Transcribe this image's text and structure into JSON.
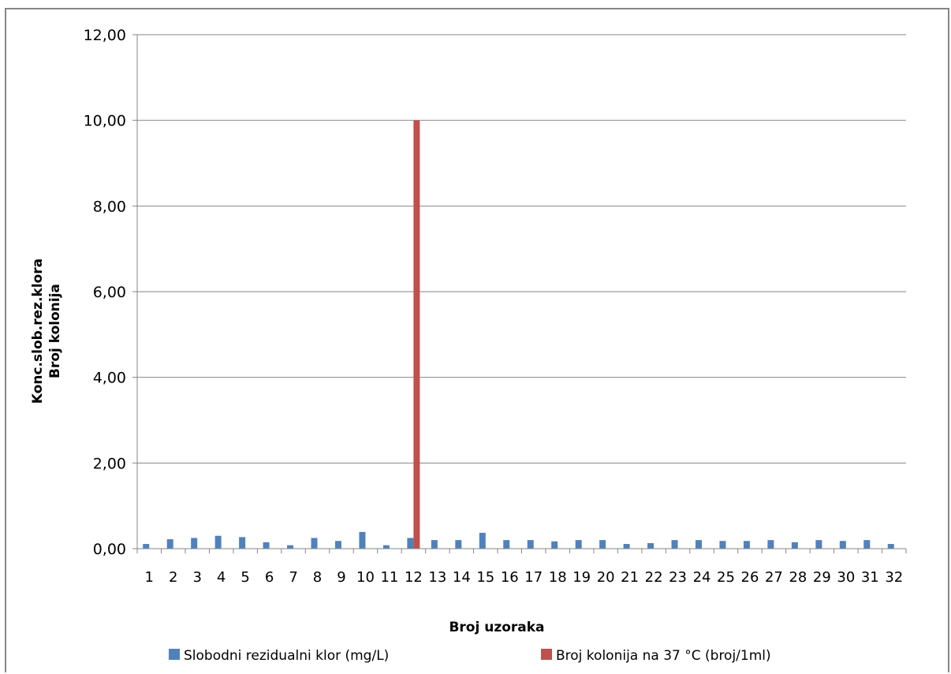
{
  "chart_data": {
    "type": "bar",
    "xlabel": "Broj uzoraka",
    "ylabel_lines": [
      "Konc.slob.rez.klora",
      "Broj kolonija"
    ],
    "ylim": [
      0,
      12
    ],
    "yticks": [
      0,
      2,
      4,
      6,
      8,
      10,
      12
    ],
    "ytick_labels": [
      "0,00",
      "2,00",
      "4,00",
      "6,00",
      "8,00",
      "10,00",
      "12,00"
    ],
    "grid": true,
    "legend_position": "bottom",
    "categories": [
      "1",
      "2",
      "3",
      "4",
      "5",
      "6",
      "7",
      "8",
      "9",
      "10",
      "11",
      "12",
      "13",
      "14",
      "15",
      "16",
      "17",
      "18",
      "19",
      "20",
      "21",
      "22",
      "23",
      "24",
      "25",
      "26",
      "27",
      "28",
      "29",
      "30",
      "31",
      "32"
    ],
    "series": [
      {
        "name": "Slobodni rezidualni klor (mg/L)",
        "color": "#4f81bd",
        "values": [
          0.11,
          0.22,
          0.25,
          0.3,
          0.27,
          0.15,
          0.08,
          0.25,
          0.18,
          0.39,
          0.08,
          0.25,
          0.2,
          0.2,
          0.37,
          0.2,
          0.2,
          0.17,
          0.2,
          0.2,
          0.11,
          0.13,
          0.2,
          0.2,
          0.18,
          0.18,
          0.2,
          0.15,
          0.2,
          0.18,
          0.2,
          0.11
        ]
      },
      {
        "name": "Broj kolonija na 37 °C (broj/1ml)",
        "color": "#c0504d",
        "values": [
          0,
          0,
          0,
          0,
          0,
          0,
          0,
          0,
          0,
          0,
          0,
          10,
          0,
          0,
          0,
          0,
          0,
          0,
          0,
          0,
          0,
          0,
          0,
          0,
          0,
          0,
          0,
          0,
          0,
          0,
          0,
          0
        ]
      }
    ]
  }
}
